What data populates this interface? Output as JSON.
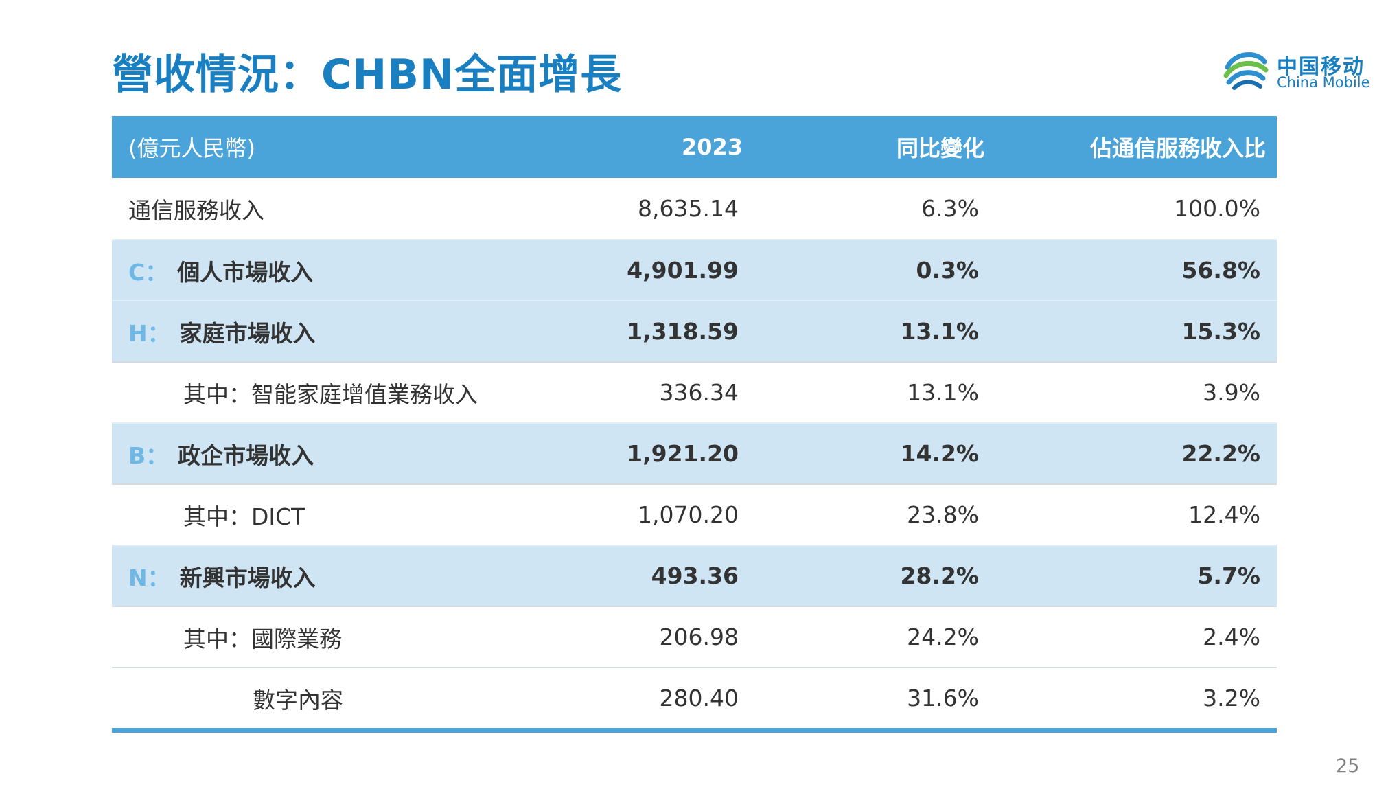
{
  "title": "營收情況：CHBN全面增長",
  "logo": {
    "cn": "中国移动",
    "en": "China Mobile"
  },
  "table": {
    "headers": [
      "(億元人民幣)",
      "2023",
      "同比變化",
      "佔通信服務收入比"
    ],
    "rows": [
      {
        "prefix": "",
        "label": "通信服務收入",
        "v2023": "8,635.14",
        "yoy": "6.3%",
        "share": "100.0%"
      },
      {
        "prefix": "C：",
        "label": "個人市場收入",
        "v2023": "4,901.99",
        "yoy": "0.3%",
        "share": "56.8%"
      },
      {
        "prefix": "H：",
        "label": "家庭市場收入",
        "v2023": "1,318.59",
        "yoy": "13.1%",
        "share": "15.3%"
      },
      {
        "prefix": "",
        "label": "其中：智能家庭增值業務收入",
        "v2023": "336.34",
        "yoy": "13.1%",
        "share": "3.9%"
      },
      {
        "prefix": "B：",
        "label": "政企市場收入",
        "v2023": "1,921.20",
        "yoy": "14.2%",
        "share": "22.2%"
      },
      {
        "prefix": "",
        "label": "其中：DICT",
        "v2023": "1,070.20",
        "yoy": "23.8%",
        "share": "12.4%"
      },
      {
        "prefix": "N：",
        "label": "新興市場收入",
        "v2023": "493.36",
        "yoy": "28.2%",
        "share": "5.7%"
      },
      {
        "prefix": "",
        "label": "其中：國際業務",
        "v2023": "206.98",
        "yoy": "24.2%",
        "share": "2.4%"
      },
      {
        "prefix": "",
        "label": "數字內容",
        "v2023": "280.40",
        "yoy": "31.6%",
        "share": "3.2%"
      }
    ]
  },
  "page_number": "25"
}
